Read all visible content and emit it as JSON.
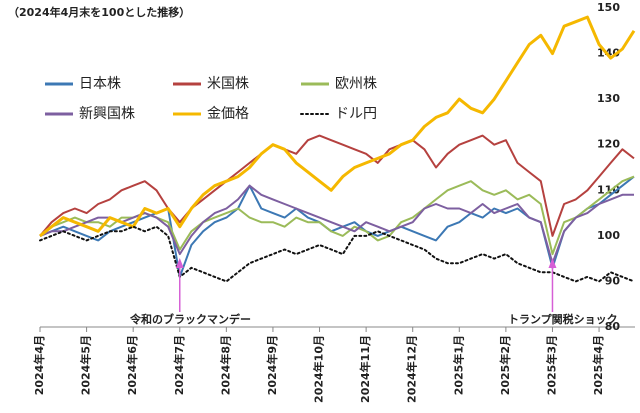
{
  "chart_data": {
    "type": "line",
    "title": "（2024年4月末を100とした推移）",
    "categories": [
      "2024年4月",
      null,
      null,
      null,
      "2024年5月",
      null,
      null,
      null,
      "2024年6月",
      null,
      null,
      null,
      "2024年7月",
      null,
      null,
      null,
      "2024年8月",
      null,
      null,
      null,
      "2024年9月",
      null,
      null,
      null,
      "2024年10月",
      null,
      null,
      null,
      "2024年11月",
      null,
      null,
      null,
      "2024年12月",
      null,
      null,
      null,
      "2025年1月",
      null,
      null,
      null,
      "2025年2月",
      null,
      null,
      null,
      "2025年3月",
      null,
      null,
      null,
      "2025年4月",
      null,
      null,
      null
    ],
    "series": [
      {
        "name": "日本株",
        "color": "#3c78b4",
        "values": [
          100,
          101,
          102,
          101,
          100,
          99,
          101,
          102,
          103,
          104,
          105,
          106,
          91,
          98,
          101,
          103,
          104,
          106,
          111,
          106,
          105,
          104,
          106,
          104,
          103,
          101,
          102,
          103,
          101,
          100,
          101,
          102,
          101,
          100,
          99,
          102,
          103,
          105,
          104,
          106,
          105,
          106,
          104,
          103,
          93,
          101,
          104,
          106,
          107,
          109,
          111,
          113
        ]
      },
      {
        "name": "米国株",
        "color": "#b5413f",
        "values": [
          100,
          103,
          105,
          106,
          105,
          107,
          108,
          110,
          111,
          112,
          110,
          106,
          103,
          106,
          108,
          110,
          112,
          114,
          116,
          118,
          120,
          119,
          118,
          121,
          122,
          121,
          120,
          119,
          118,
          116,
          119,
          120,
          121,
          119,
          115,
          118,
          120,
          121,
          122,
          120,
          121,
          116,
          114,
          112,
          100,
          107,
          108,
          110,
          113,
          116,
          119,
          117
        ]
      },
      {
        "name": "欧州株",
        "color": "#9bbb59",
        "values": [
          100,
          102,
          103,
          104,
          103,
          103,
          102,
          104,
          104,
          105,
          104,
          103,
          97,
          101,
          103,
          104,
          105,
          106,
          104,
          103,
          103,
          102,
          104,
          103,
          103,
          101,
          100,
          102,
          101,
          99,
          100,
          103,
          104,
          106,
          108,
          110,
          111,
          112,
          110,
          109,
          110,
          108,
          109,
          107,
          96,
          103,
          104,
          106,
          108,
          110,
          112,
          113
        ]
      },
      {
        "name": "新興国株",
        "color": "#7d5fa0",
        "values": [
          100,
          101,
          101,
          102,
          103,
          104,
          104,
          103,
          104,
          105,
          104,
          102,
          96,
          100,
          103,
          105,
          106,
          108,
          111,
          109,
          108,
          107,
          106,
          105,
          104,
          103,
          102,
          101,
          103,
          102,
          101,
          102,
          103,
          106,
          107,
          106,
          106,
          105,
          107,
          105,
          106,
          107,
          104,
          103,
          94,
          101,
          104,
          105,
          107,
          108,
          109,
          109
        ]
      },
      {
        "name": "金価格",
        "color": "#f5b800",
        "values": [
          100,
          102,
          104,
          103,
          102,
          101,
          104,
          103,
          102,
          106,
          105,
          106,
          102,
          106,
          109,
          111,
          112,
          113,
          115,
          118,
          120,
          119,
          116,
          114,
          112,
          110,
          113,
          115,
          116,
          117,
          118,
          120,
          121,
          124,
          126,
          127,
          130,
          128,
          127,
          130,
          134,
          138,
          142,
          144,
          140,
          146,
          147,
          148,
          142,
          139,
          141,
          145
        ]
      },
      {
        "name": "ドル円",
        "color": "#111111",
        "dashed": true,
        "values": [
          99,
          100,
          101,
          100,
          99,
          100,
          101,
          101,
          102,
          101,
          102,
          100,
          91,
          93,
          92,
          91,
          90,
          92,
          94,
          95,
          96,
          97,
          96,
          97,
          98,
          97,
          96,
          100,
          100,
          101,
          100,
          99,
          98,
          97,
          95,
          94,
          94,
          95,
          96,
          95,
          96,
          94,
          93,
          92,
          92,
          91,
          90,
          91,
          90,
          92,
          91,
          90
        ]
      }
    ],
    "ylim": [
      80,
      150
    ],
    "yticks": [
      80,
      90,
      100,
      110,
      120,
      130,
      140,
      150
    ],
    "grid": false,
    "annotations": [
      "令和のブラックマンデー",
      "トランプ関税ショック"
    ]
  }
}
